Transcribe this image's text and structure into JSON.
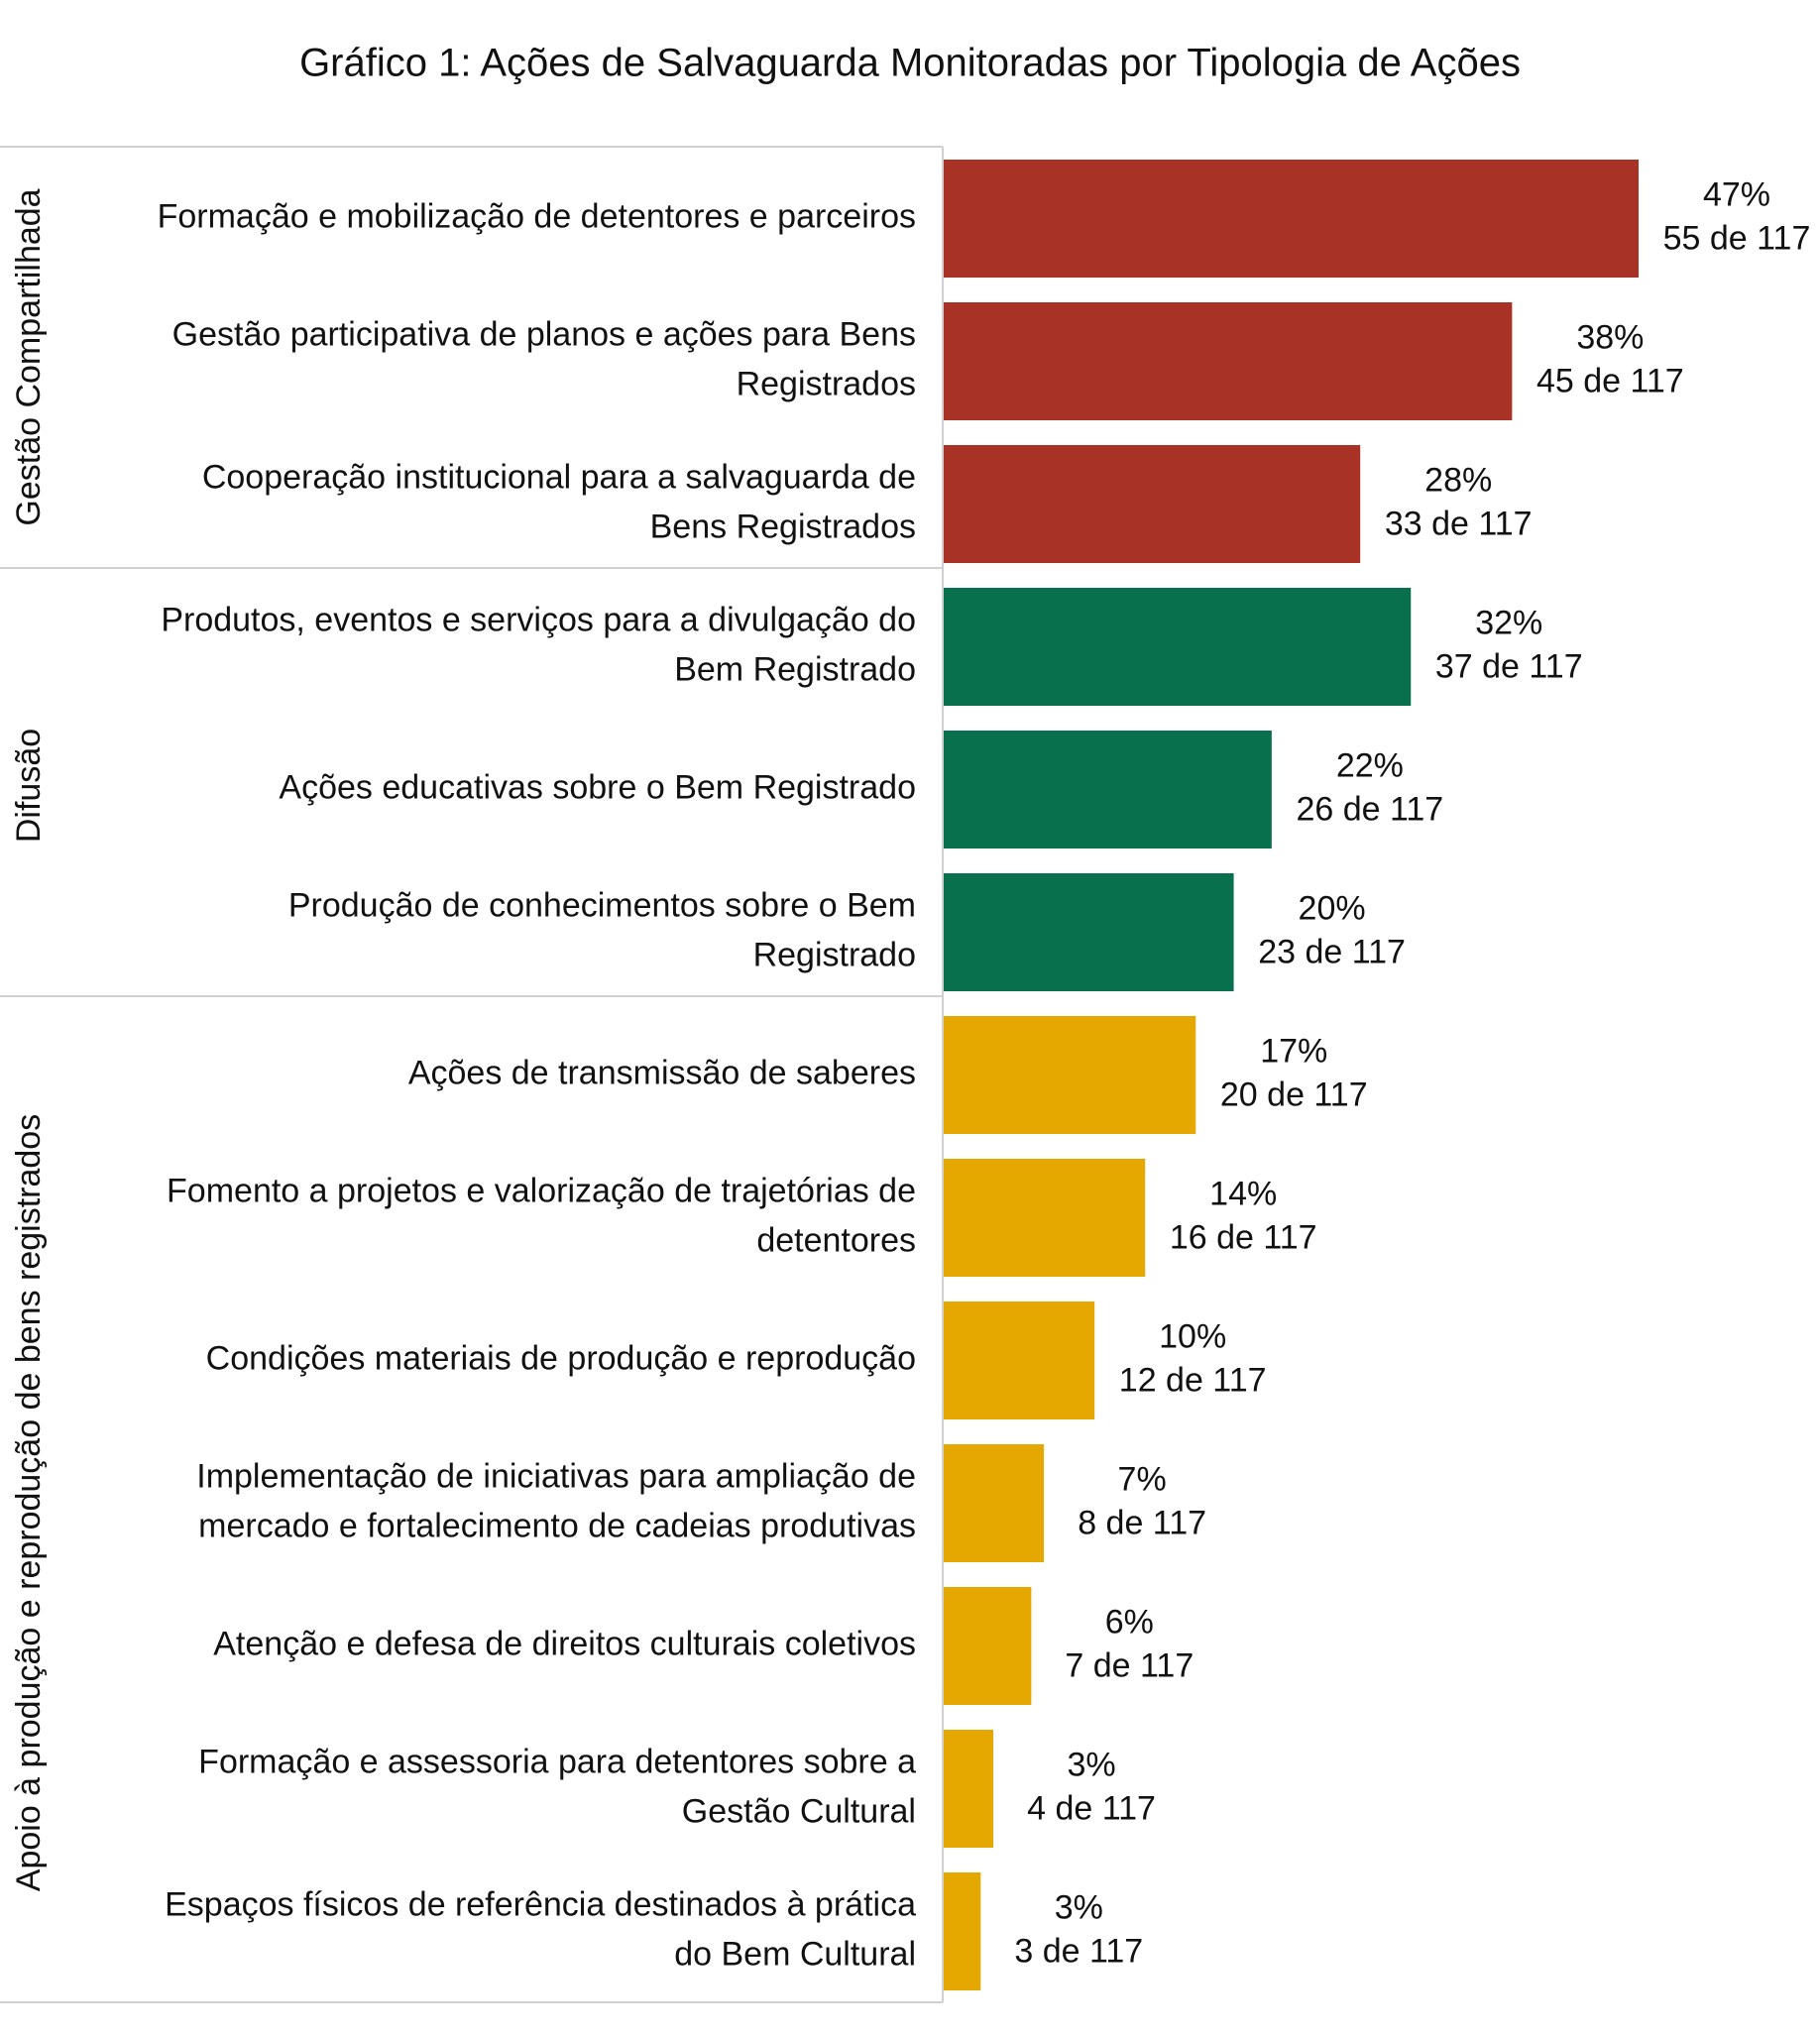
{
  "chart_data": {
    "type": "bar",
    "orientation": "horizontal",
    "title": "Gráfico 1: Ações de Salvaguarda Monitoradas por Tipologia de Ações",
    "total": 117,
    "xlim": [
      0,
      60
    ],
    "grid": false,
    "groups": [
      {
        "name": "Gestão Compartilhada",
        "color": "#A93226",
        "items": [
          {
            "label_lines": [
              "Formação e mobilização de detentores e parceiros"
            ],
            "value": 55,
            "percent": "47%",
            "count_label": "55 de 117"
          },
          {
            "label_lines": [
              "Gestão participativa de planos e ações para Bens",
              "Registrados"
            ],
            "value": 45,
            "percent": "38%",
            "count_label": "45 de 117"
          },
          {
            "label_lines": [
              "Cooperação institucional para a salvaguarda de",
              "Bens Registrados"
            ],
            "value": 33,
            "percent": "28%",
            "count_label": "33 de 117"
          }
        ]
      },
      {
        "name": "Difusão",
        "color": "#08704C",
        "items": [
          {
            "label_lines": [
              "Produtos, eventos e serviços para a divulgação do",
              "Bem Registrado"
            ],
            "value": 37,
            "percent": "32%",
            "count_label": "37 de 117"
          },
          {
            "label_lines": [
              "Ações educativas sobre o Bem Registrado"
            ],
            "value": 26,
            "percent": "22%",
            "count_label": "26 de 117"
          },
          {
            "label_lines": [
              "Produção de conhecimentos sobre o Bem",
              "Registrado"
            ],
            "value": 23,
            "percent": "20%",
            "count_label": "23 de 117"
          }
        ]
      },
      {
        "name": "Apoio à produção e reprodução de bens registrados",
        "color": "#E5A800",
        "items": [
          {
            "label_lines": [
              "Ações de transmissão de saberes"
            ],
            "value": 20,
            "percent": "17%",
            "count_label": "20 de 117"
          },
          {
            "label_lines": [
              "Fomento a projetos e valorização de trajetórias de",
              "detentores"
            ],
            "value": 16,
            "percent": "14%",
            "count_label": "16 de 117"
          },
          {
            "label_lines": [
              "Condições materiais de produção e reprodução"
            ],
            "value": 12,
            "percent": "10%",
            "count_label": "12 de 117"
          },
          {
            "label_lines": [
              "Implementação de iniciativas para ampliação de",
              "mercado e fortalecimento de cadeias produtivas"
            ],
            "value": 8,
            "percent": "7%",
            "count_label": "8 de 117"
          },
          {
            "label_lines": [
              "Atenção e defesa de direitos culturais coletivos"
            ],
            "value": 7,
            "percent": "6%",
            "count_label": "7 de 117"
          },
          {
            "label_lines": [
              "Formação e assessoria para detentores sobre a",
              "Gestão Cultural"
            ],
            "value": 4,
            "percent": "3%",
            "count_label": "4 de 117"
          },
          {
            "label_lines": [
              "Espaços físicos de referência destinados à prática",
              "do Bem Cultural"
            ],
            "value": 3,
            "percent": "3%",
            "count_label": "3 de 117"
          }
        ]
      }
    ]
  }
}
